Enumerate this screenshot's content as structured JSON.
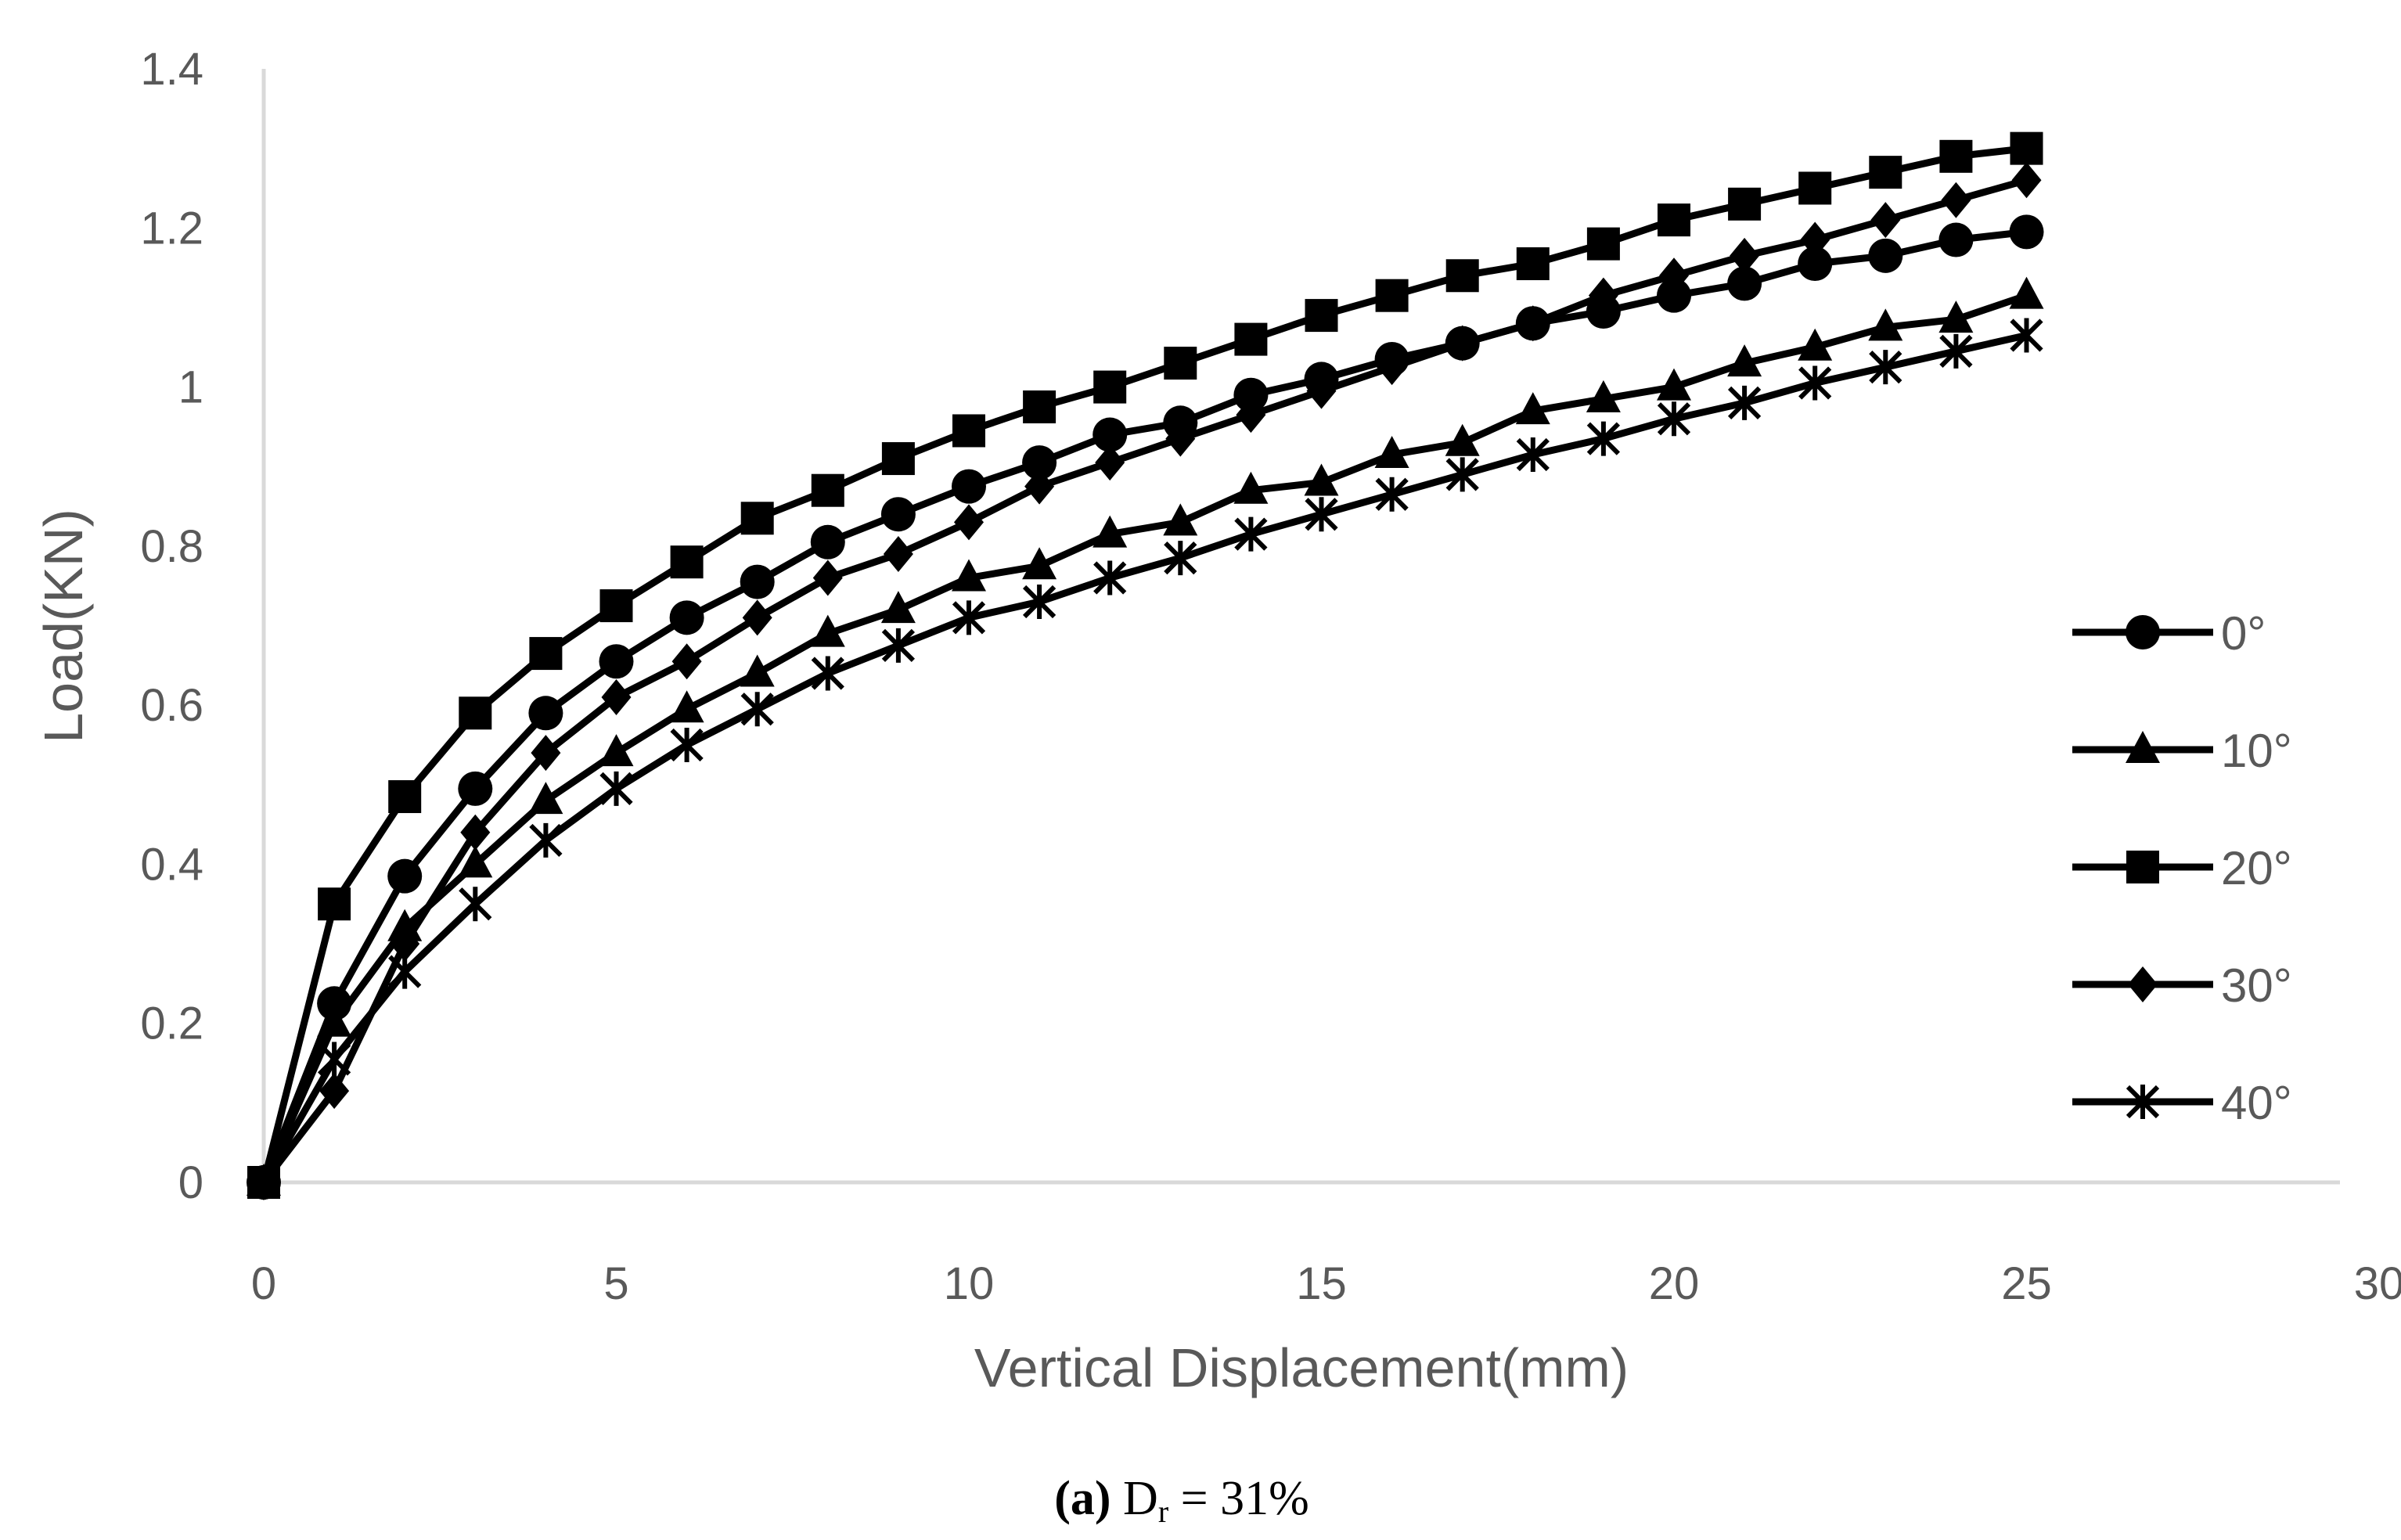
{
  "chart_data": {
    "type": "line",
    "xlabel": "Vertical Displacement(mm)",
    "ylabel": "Load(KN)",
    "xlim": [
      0,
      30
    ],
    "ylim": [
      0,
      1.4
    ],
    "x_ticks": [
      "0",
      "5",
      "10",
      "15",
      "20",
      "25",
      "30"
    ],
    "y_ticks": [
      "0",
      "0.2",
      "0.4",
      "0.6",
      "0.8",
      "1",
      "1.2",
      "1.4"
    ],
    "grid": false,
    "legend_position": "right",
    "x": [
      0,
      1,
      2,
      3,
      4,
      5,
      6,
      7,
      8,
      9,
      10,
      11,
      12,
      13,
      14,
      15,
      16,
      17,
      18,
      19,
      20,
      21,
      22,
      23,
      24,
      25
    ],
    "series": [
      {
        "name": "0°",
        "marker": "circle",
        "values": [
          0,
          0.225,
          0.385,
          0.495,
          0.59,
          0.655,
          0.71,
          0.755,
          0.805,
          0.84,
          0.875,
          0.905,
          0.94,
          0.955,
          0.99,
          1.01,
          1.035,
          1.055,
          1.08,
          1.095,
          1.115,
          1.13,
          1.155,
          1.165,
          1.185,
          1.195
        ]
      },
      {
        "name": "10°",
        "marker": "triangle",
        "values": [
          0,
          0.2,
          0.32,
          0.4,
          0.48,
          0.54,
          0.595,
          0.64,
          0.69,
          0.72,
          0.76,
          0.775,
          0.815,
          0.83,
          0.87,
          0.88,
          0.915,
          0.93,
          0.97,
          0.985,
          1.0,
          1.03,
          1.05,
          1.075,
          1.085,
          1.115
        ]
      },
      {
        "name": "20°",
        "marker": "square",
        "values": [
          0,
          0.35,
          0.485,
          0.59,
          0.665,
          0.725,
          0.78,
          0.835,
          0.87,
          0.91,
          0.945,
          0.975,
          1.0,
          1.03,
          1.06,
          1.09,
          1.115,
          1.14,
          1.155,
          1.18,
          1.21,
          1.23,
          1.25,
          1.27,
          1.29,
          1.3
        ]
      },
      {
        "name": "30°",
        "marker": "diamond",
        "values": [
          0,
          0.115,
          0.3,
          0.44,
          0.54,
          0.61,
          0.655,
          0.71,
          0.76,
          0.79,
          0.83,
          0.875,
          0.905,
          0.935,
          0.965,
          0.995,
          1.025,
          1.055,
          1.08,
          1.115,
          1.14,
          1.165,
          1.185,
          1.21,
          1.235,
          1.26
        ]
      },
      {
        "name": "40°",
        "marker": "star",
        "values": [
          0,
          0.155,
          0.265,
          0.35,
          0.43,
          0.495,
          0.55,
          0.595,
          0.64,
          0.675,
          0.71,
          0.73,
          0.76,
          0.785,
          0.815,
          0.84,
          0.865,
          0.89,
          0.915,
          0.935,
          0.96,
          0.98,
          1.005,
          1.025,
          1.045,
          1.065
        ]
      }
    ],
    "caption": {
      "bold": "(a)",
      "rest": " D",
      "subscript": "r",
      "tail": " = 31%"
    }
  }
}
